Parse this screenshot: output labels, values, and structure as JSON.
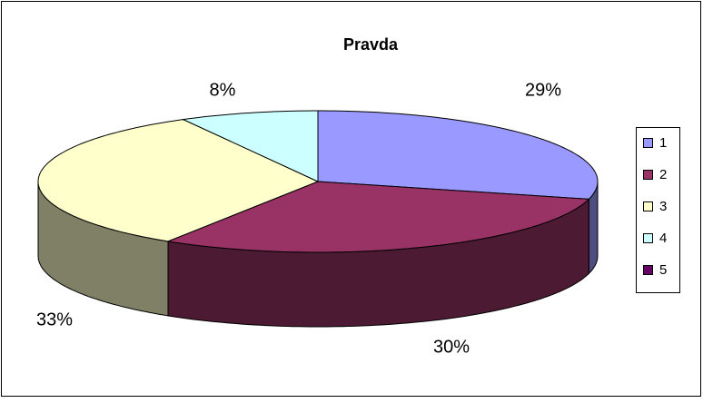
{
  "chart_data": {
    "type": "pie3d",
    "title": "Pravda",
    "categories": [
      "1",
      "2",
      "3",
      "4",
      "5"
    ],
    "values": [
      29,
      30,
      33,
      8,
      0
    ],
    "value_labels": [
      "29%",
      "30%",
      "33%",
      "8%",
      null
    ],
    "colors": [
      "#9999ff",
      "#993366",
      "#ffffcc",
      "#ccffff",
      "#660066"
    ],
    "legend": "right"
  }
}
